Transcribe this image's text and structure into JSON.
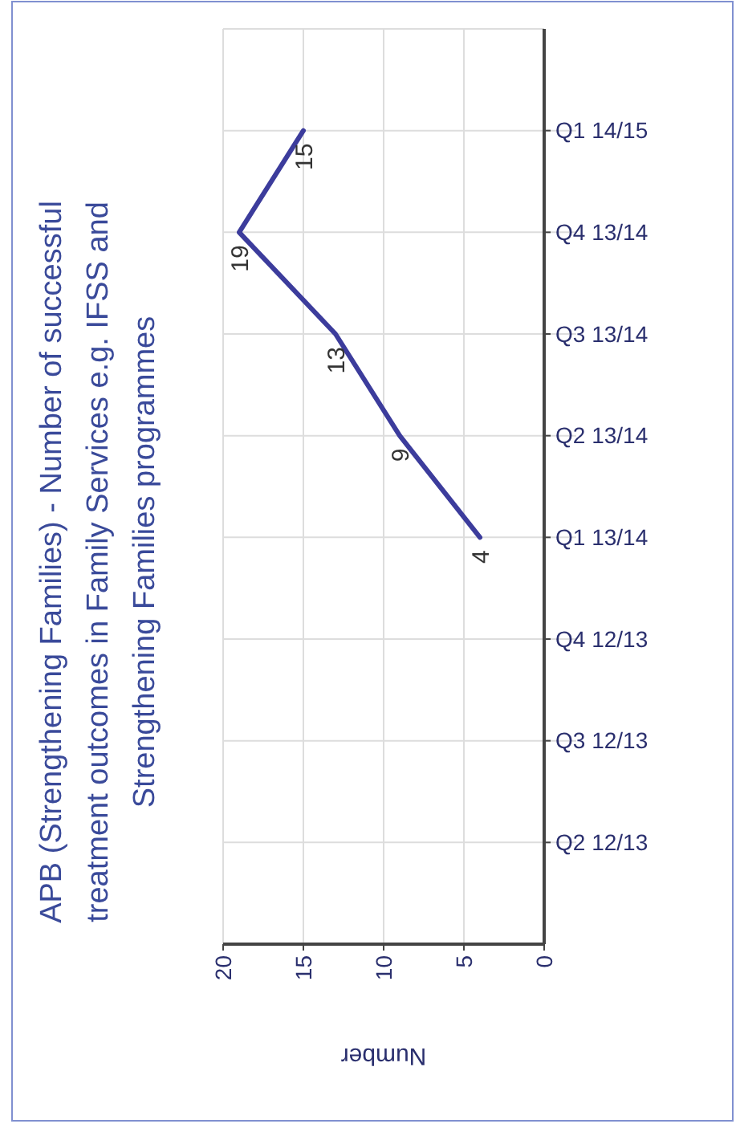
{
  "chart_data": {
    "type": "line",
    "orientation": "horizontal",
    "title": "APB (Strengthening Families) - Number of successful treatment outcomes in Family Services e.g. IFSS and Strengthening Families programmes",
    "xlabel": "Number",
    "categories": [
      "Q1 14/15",
      "Q4 13/14",
      "Q3 13/14",
      "Q2 13/14",
      "Q1 13/14",
      "Q4 12/13",
      "Q3 12/13",
      "Q2 12/13"
    ],
    "series": [
      {
        "color": "#3c3c9c",
        "values": [
          15,
          19,
          13,
          9,
          4,
          null,
          null,
          null
        ]
      }
    ],
    "xlim": [
      20,
      0
    ],
    "xticks": [
      20,
      15,
      10,
      5,
      0
    ],
    "grid": true,
    "data_labels": true,
    "marker": "none",
    "line_style": "solid"
  }
}
